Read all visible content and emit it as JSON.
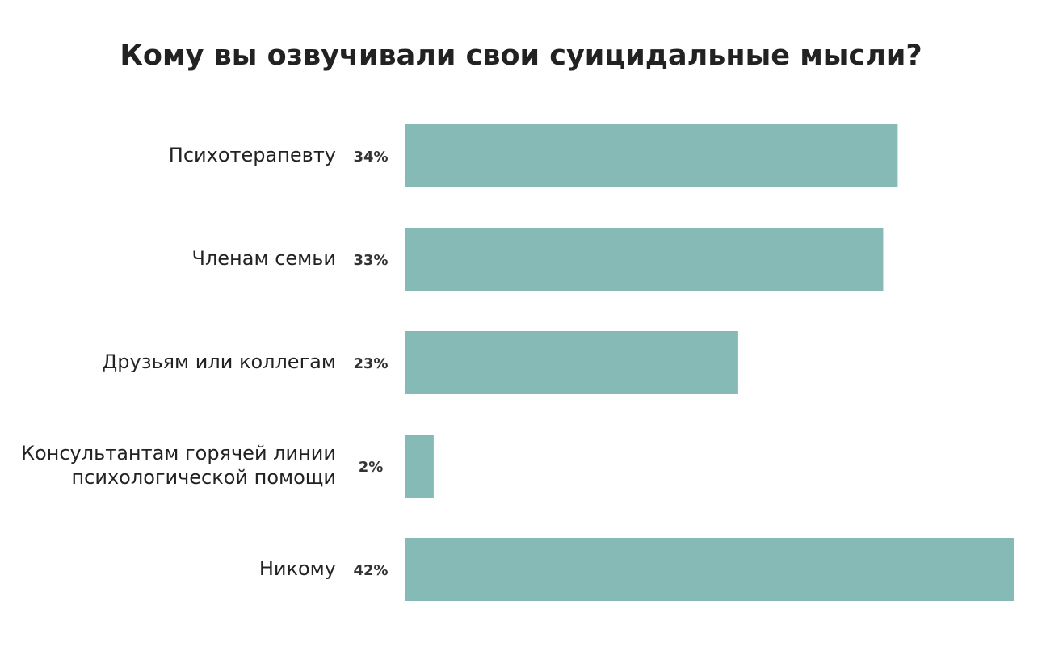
{
  "chart_data": {
    "type": "hbar",
    "title": "Кому вы озвучивали свои суицидальные мысли?",
    "categories": [
      "Психотерапевту",
      "Членам семьи",
      "Друзьям или коллегам",
      "Консультантам горячей линии\nпсихологической помощи",
      "Никому"
    ],
    "values": [
      34,
      33,
      23,
      2,
      42
    ],
    "value_labels": [
      "34%",
      "33%",
      "23%",
      "2%",
      "42%"
    ],
    "color": "#86bab7"
  }
}
